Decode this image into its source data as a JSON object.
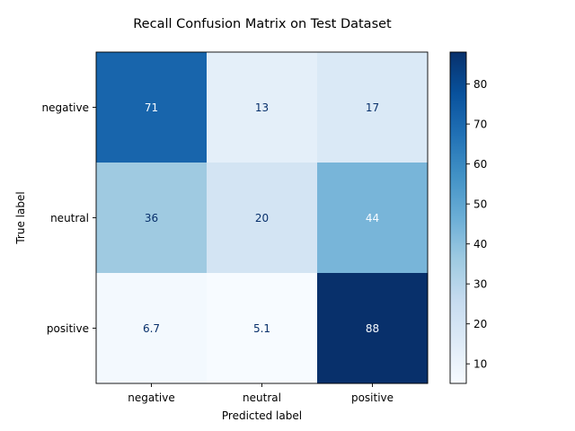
{
  "chart_data": {
    "type": "heatmap",
    "title": "Recall Confusion Matrix on Test Dataset",
    "xlabel": "Predicted label",
    "ylabel": "True label",
    "x_categories": [
      "negative",
      "neutral",
      "positive"
    ],
    "y_categories": [
      "negative",
      "neutral",
      "positive"
    ],
    "values": [
      [
        71,
        13,
        17
      ],
      [
        36,
        20,
        44
      ],
      [
        6.7,
        5.1,
        88
      ]
    ],
    "value_labels": [
      [
        "71",
        "13",
        "17"
      ],
      [
        "36",
        "20",
        "44"
      ],
      [
        "6.7",
        "5.1",
        "88"
      ]
    ],
    "colorbar": {
      "colormap": "Blues",
      "min": 5.1,
      "max": 88,
      "ticks": [
        10,
        20,
        30,
        40,
        50,
        60,
        70,
        80
      ]
    },
    "grid": false
  }
}
